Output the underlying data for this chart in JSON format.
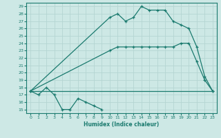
{
  "xlabel": "Humidex (Indice chaleur)",
  "bg_color": "#cde8e5",
  "line_color": "#1a7a6e",
  "grid_color": "#b5d5d2",
  "xlim": [
    -0.5,
    23.5
  ],
  "ylim": [
    14.5,
    29.5
  ],
  "xticks": [
    0,
    1,
    2,
    3,
    4,
    5,
    6,
    7,
    8,
    9,
    10,
    11,
    12,
    13,
    14,
    15,
    16,
    17,
    18,
    19,
    20,
    21,
    22,
    23
  ],
  "yticks": [
    15,
    16,
    17,
    18,
    19,
    20,
    21,
    22,
    23,
    24,
    25,
    26,
    27,
    28,
    29
  ],
  "series": [
    {
      "x": [
        0,
        1,
        2,
        3,
        4,
        5,
        6,
        7,
        8,
        9
      ],
      "y": [
        17.5,
        17.0,
        18.0,
        17.0,
        15.0,
        15.0,
        16.5,
        16.0,
        15.5,
        15.0
      ],
      "marker": true
    },
    {
      "x": [
        0,
        9,
        10,
        11,
        12,
        13,
        14,
        15,
        16,
        17,
        18,
        19,
        20,
        21,
        22,
        23
      ],
      "y": [
        17.5,
        17.5,
        17.5,
        17.5,
        17.5,
        17.5,
        17.5,
        17.5,
        17.5,
        17.5,
        17.5,
        17.5,
        17.5,
        17.5,
        17.5,
        17.5
      ],
      "marker": false
    },
    {
      "x": [
        0,
        10,
        11,
        12,
        13,
        14,
        15,
        16,
        17,
        18,
        19,
        20,
        21,
        22,
        23
      ],
      "y": [
        17.5,
        23.0,
        23.5,
        23.5,
        23.5,
        23.5,
        23.5,
        23.5,
        23.5,
        23.5,
        24.0,
        24.0,
        21.5,
        19.0,
        17.5
      ],
      "marker": true
    },
    {
      "x": [
        0,
        10,
        11,
        12,
        13,
        14,
        15,
        16,
        17,
        18,
        19,
        20,
        21,
        22,
        23
      ],
      "y": [
        17.5,
        27.5,
        28.0,
        27.0,
        27.5,
        29.0,
        28.5,
        28.5,
        28.5,
        27.0,
        26.5,
        26.0,
        23.5,
        19.5,
        17.5
      ],
      "marker": true
    }
  ]
}
